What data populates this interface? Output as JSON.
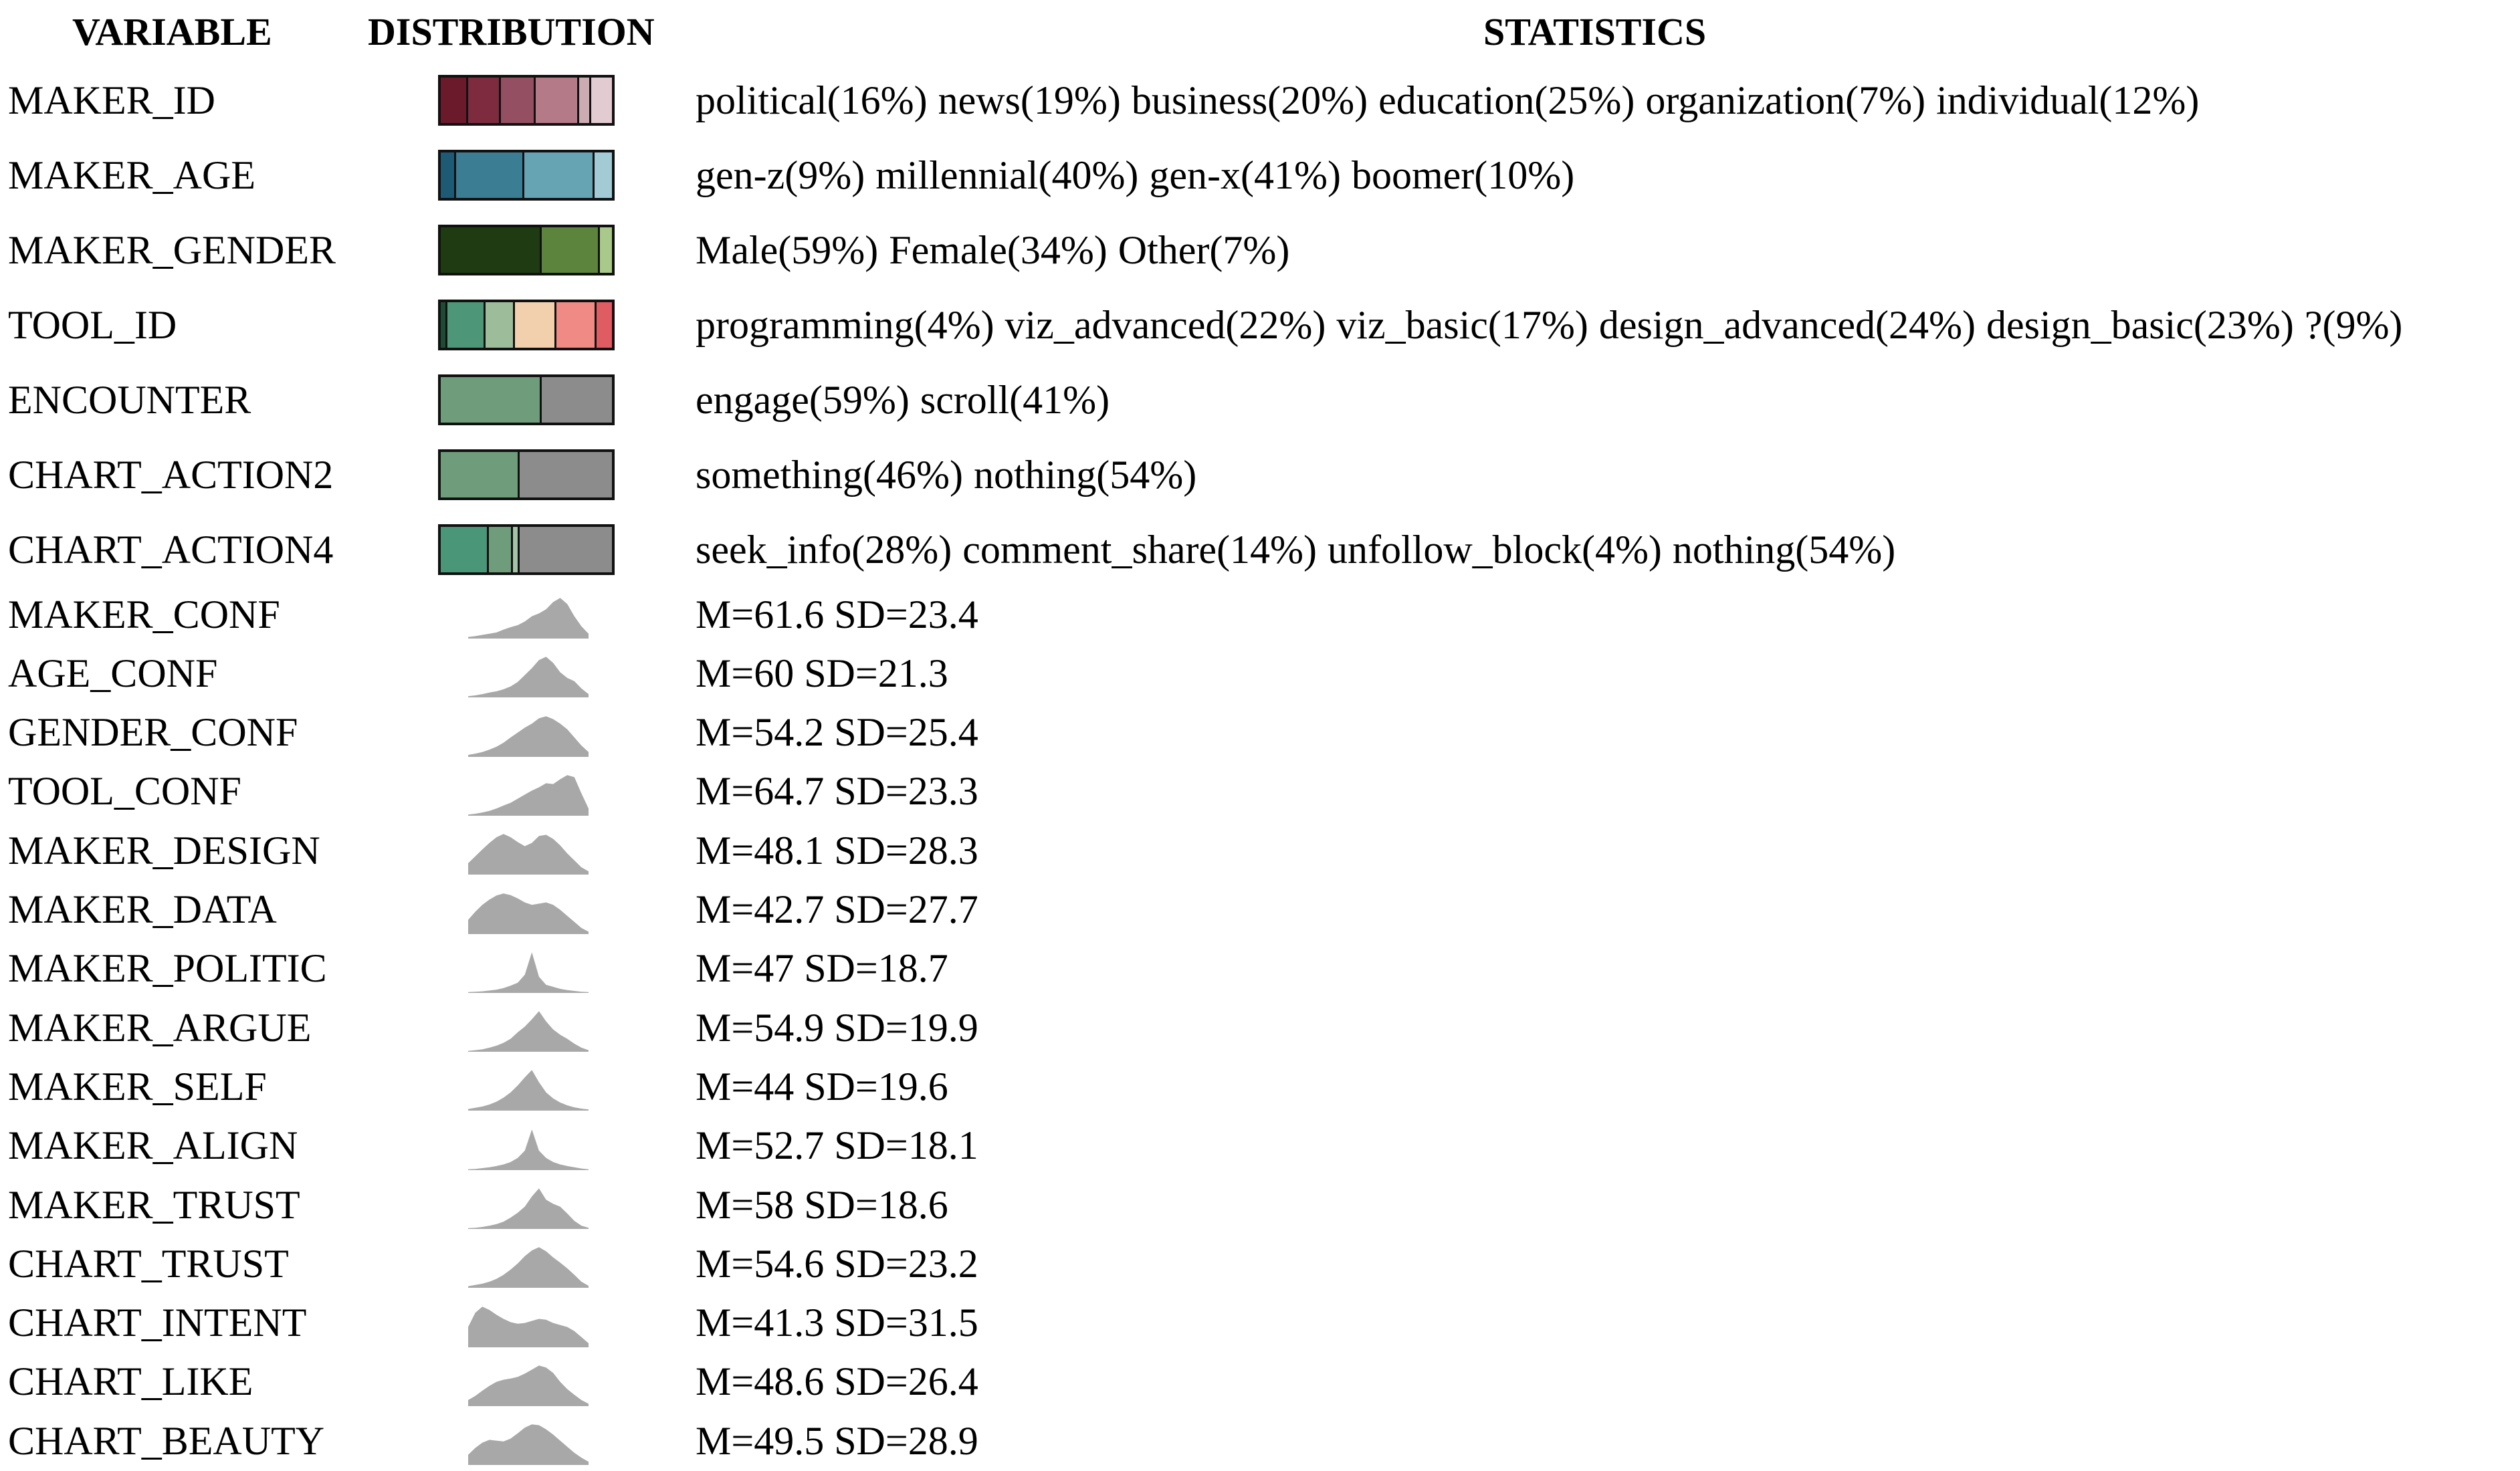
{
  "header": {
    "variable": "VARIABLE",
    "distribution": "DISTRIBUTION",
    "statistics": "STATISTICS"
  },
  "chart_data": {
    "type": "table",
    "columns": [
      "VARIABLE",
      "DISTRIBUTION",
      "STATISTICS"
    ],
    "categorical": [
      {
        "variable": "MAKER_ID",
        "categories": [
          {
            "label": "political",
            "pct": 16,
            "text": "political(16%)",
            "color": "#6b1a2c"
          },
          {
            "label": "news",
            "pct": 19,
            "text": "news(19%)",
            "color": "#7e2b40"
          },
          {
            "label": "business",
            "pct": 20,
            "text": "business(20%)",
            "color": "#954f62"
          },
          {
            "label": "education",
            "pct": 25,
            "text": "education(25%)",
            "color": "#b47a88"
          },
          {
            "label": "organization",
            "pct": 7,
            "text": "organization(7%)",
            "color": "#ccabb3"
          },
          {
            "label": "individual",
            "pct": 12,
            "text": "individual(12%)",
            "color": "#e3ccd1"
          }
        ]
      },
      {
        "variable": "MAKER_AGE",
        "categories": [
          {
            "label": "gen-z",
            "pct": 9,
            "text": "gen-z(9%)",
            "color": "#1f5a74"
          },
          {
            "label": "millennial",
            "pct": 40,
            "text": "millennial(40%)",
            "color": "#3b7d92"
          },
          {
            "label": "gen-x",
            "pct": 41,
            "text": "gen-x(41%)",
            "color": "#66a3b3"
          },
          {
            "label": "boomer",
            "pct": 10,
            "text": "boomer(10%)",
            "color": "#a3cbd5"
          }
        ]
      },
      {
        "variable": "MAKER_GENDER",
        "categories": [
          {
            "label": "Male",
            "pct": 59,
            "text": "Male(59%)",
            "color": "#1e3b12"
          },
          {
            "label": "Female",
            "pct": 34,
            "text": "Female(34%)",
            "color": "#5c843d"
          },
          {
            "label": "Other",
            "pct": 7,
            "text": "Other(7%)",
            "color": "#a9c98a"
          }
        ]
      },
      {
        "variable": "TOOL_ID",
        "categories": [
          {
            "label": "programming",
            "pct": 4,
            "text": "programming(4%)",
            "color": "#1e4b35"
          },
          {
            "label": "viz_advanced",
            "pct": 22,
            "text": "viz_advanced(22%)",
            "color": "#4d9778"
          },
          {
            "label": "viz_basic",
            "pct": 17,
            "text": "viz_basic(17%)",
            "color": "#9dbd9a"
          },
          {
            "label": "design_advanced",
            "pct": 24,
            "text": "design_advanced(24%)",
            "color": "#f2d0ae"
          },
          {
            "label": "design_basic",
            "pct": 23,
            "text": "design_basic(23%)",
            "color": "#ef8a84"
          },
          {
            "label": "?",
            "pct": 9,
            "text": "?(9%)",
            "color": "#e05c63"
          }
        ]
      },
      {
        "variable": "ENCOUNTER",
        "categories": [
          {
            "label": "engage",
            "pct": 59,
            "text": "engage(59%)",
            "color": "#6f9d7b"
          },
          {
            "label": "scroll",
            "pct": 41,
            "text": "scroll(41%)",
            "color": "#8c8c8c"
          }
        ]
      },
      {
        "variable": "CHART_ACTION2",
        "categories": [
          {
            "label": "something",
            "pct": 46,
            "text": "something(46%)",
            "color": "#6f9d7b"
          },
          {
            "label": "nothing",
            "pct": 54,
            "text": "nothing(54%)",
            "color": "#8c8c8c"
          }
        ]
      },
      {
        "variable": "CHART_ACTION4",
        "categories": [
          {
            "label": "seek_info",
            "pct": 28,
            "text": "seek_info(28%)",
            "color": "#4a9679"
          },
          {
            "label": "comment_share",
            "pct": 14,
            "text": "comment_share(14%)",
            "color": "#6f9d7b"
          },
          {
            "label": "unfollow_block",
            "pct": 4,
            "text": "unfollow_block(4%)",
            "color": "#a6c2a8"
          },
          {
            "label": "nothing",
            "pct": 54,
            "text": "nothing(54%)",
            "color": "#8c8c8c"
          }
        ]
      }
    ],
    "continuous": [
      {
        "variable": "MAKER_CONF",
        "stats": "M=61.6 SD=23.4",
        "mean": 61.6,
        "sd": 23.4,
        "density": [
          0.04,
          0.06,
          0.09,
          0.12,
          0.15,
          0.22,
          0.28,
          0.33,
          0.42,
          0.55,
          0.62,
          0.72,
          0.9,
          1.0,
          0.85,
          0.55,
          0.3,
          0.12
        ]
      },
      {
        "variable": "AGE_CONF",
        "stats": "M=60 SD=21.3",
        "mean": 60,
        "sd": 21.3,
        "density": [
          0.03,
          0.05,
          0.08,
          0.12,
          0.15,
          0.2,
          0.27,
          0.38,
          0.55,
          0.72,
          0.92,
          1.0,
          0.85,
          0.62,
          0.48,
          0.4,
          0.22,
          0.08
        ]
      },
      {
        "variable": "GENDER_CONF",
        "stats": "M=54.2 SD=25.4",
        "mean": 54.2,
        "sd": 25.4,
        "density": [
          0.05,
          0.08,
          0.12,
          0.18,
          0.25,
          0.35,
          0.48,
          0.6,
          0.72,
          0.82,
          0.95,
          1.0,
          0.93,
          0.82,
          0.68,
          0.48,
          0.28,
          0.12
        ]
      },
      {
        "variable": "TOOL_CONF",
        "stats": "M=64.7 SD=23.3",
        "mean": 64.7,
        "sd": 23.3,
        "density": [
          0.03,
          0.05,
          0.08,
          0.12,
          0.18,
          0.25,
          0.32,
          0.42,
          0.52,
          0.62,
          0.7,
          0.8,
          0.78,
          0.9,
          1.0,
          0.95,
          0.55,
          0.18
        ]
      },
      {
        "variable": "MAKER_DESIGN",
        "stats": "M=48.1 SD=28.3",
        "mean": 48.1,
        "sd": 28.3,
        "density": [
          0.28,
          0.45,
          0.62,
          0.78,
          0.92,
          1.0,
          0.92,
          0.8,
          0.7,
          0.78,
          0.95,
          0.98,
          0.88,
          0.72,
          0.52,
          0.35,
          0.18,
          0.08
        ]
      },
      {
        "variable": "MAKER_DATA",
        "stats": "M=42.7 SD=27.7",
        "mean": 42.7,
        "sd": 27.7,
        "density": [
          0.35,
          0.55,
          0.72,
          0.85,
          0.95,
          1.0,
          0.96,
          0.88,
          0.78,
          0.72,
          0.75,
          0.78,
          0.72,
          0.6,
          0.45,
          0.3,
          0.15,
          0.06
        ]
      },
      {
        "variable": "MAKER_POLITIC",
        "stats": "M=47 SD=18.7",
        "mean": 47,
        "sd": 18.7,
        "density": [
          0.02,
          0.03,
          0.04,
          0.06,
          0.08,
          0.12,
          0.18,
          0.25,
          0.45,
          1.0,
          0.4,
          0.2,
          0.15,
          0.1,
          0.07,
          0.05,
          0.03,
          0.02
        ]
      },
      {
        "variable": "MAKER_ARGUE",
        "stats": "M=54.9 SD=19.9",
        "mean": 54.9,
        "sd": 19.9,
        "density": [
          0.02,
          0.04,
          0.06,
          0.1,
          0.15,
          0.22,
          0.32,
          0.48,
          0.62,
          0.8,
          1.0,
          0.75,
          0.55,
          0.42,
          0.32,
          0.2,
          0.1,
          0.04
        ]
      },
      {
        "variable": "MAKER_SELF",
        "stats": "M=44 SD=19.6",
        "mean": 44,
        "sd": 19.6,
        "density": [
          0.04,
          0.07,
          0.1,
          0.15,
          0.22,
          0.32,
          0.45,
          0.62,
          0.82,
          1.0,
          0.7,
          0.45,
          0.3,
          0.2,
          0.13,
          0.08,
          0.05,
          0.03
        ]
      },
      {
        "variable": "MAKER_ALIGN",
        "stats": "M=52.7 SD=18.1",
        "mean": 52.7,
        "sd": 18.1,
        "density": [
          0.02,
          0.03,
          0.05,
          0.07,
          0.1,
          0.14,
          0.2,
          0.3,
          0.48,
          1.0,
          0.48,
          0.3,
          0.2,
          0.14,
          0.1,
          0.07,
          0.04,
          0.02
        ]
      },
      {
        "variable": "MAKER_TRUST",
        "stats": "M=58 SD=18.6",
        "mean": 58,
        "sd": 18.6,
        "density": [
          0.02,
          0.03,
          0.05,
          0.08,
          0.12,
          0.18,
          0.28,
          0.4,
          0.55,
          0.8,
          1.0,
          0.72,
          0.62,
          0.55,
          0.38,
          0.2,
          0.08,
          0.03
        ]
      },
      {
        "variable": "CHART_TRUST",
        "stats": "M=54.6 SD=23.2",
        "mean": 54.6,
        "sd": 23.2,
        "density": [
          0.04,
          0.07,
          0.1,
          0.15,
          0.22,
          0.32,
          0.45,
          0.6,
          0.78,
          0.92,
          1.0,
          0.9,
          0.75,
          0.62,
          0.48,
          0.32,
          0.15,
          0.05
        ]
      },
      {
        "variable": "CHART_INTENT",
        "stats": "M=41.3 SD=31.5",
        "mean": 41.3,
        "sd": 31.5,
        "density": [
          0.5,
          0.85,
          1.0,
          0.92,
          0.8,
          0.7,
          0.62,
          0.58,
          0.6,
          0.65,
          0.7,
          0.68,
          0.6,
          0.55,
          0.5,
          0.4,
          0.25,
          0.1
        ]
      },
      {
        "variable": "CHART_LIKE",
        "stats": "M=48.6 SD=26.4",
        "mean": 48.6,
        "sd": 26.4,
        "density": [
          0.15,
          0.25,
          0.38,
          0.5,
          0.6,
          0.65,
          0.68,
          0.72,
          0.8,
          0.9,
          1.0,
          0.95,
          0.82,
          0.6,
          0.42,
          0.28,
          0.15,
          0.06
        ]
      },
      {
        "variable": "CHART_BEAUTY",
        "stats": "M=49.5 SD=28.9",
        "mean": 49.5,
        "sd": 28.9,
        "density": [
          0.25,
          0.42,
          0.55,
          0.62,
          0.6,
          0.58,
          0.65,
          0.78,
          0.92,
          1.0,
          0.98,
          0.88,
          0.75,
          0.6,
          0.45,
          0.3,
          0.18,
          0.08
        ]
      }
    ]
  }
}
